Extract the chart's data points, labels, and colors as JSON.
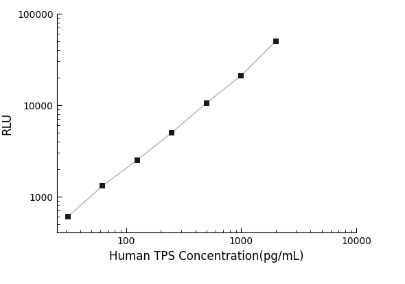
{
  "x_data": [
    31.25,
    62.5,
    125,
    250,
    500,
    1000,
    2000
  ],
  "y_data": [
    600,
    1300,
    2500,
    5000,
    10500,
    21000,
    50000
  ],
  "xlabel": "Human TPS Concentration(pg/mL)",
  "ylabel": "RLU",
  "xlim": [
    25,
    10000
  ],
  "ylim": [
    400,
    100000
  ],
  "line_color": "#b0b0b0",
  "marker_color": "#1a1a1a",
  "marker_size": 6,
  "background_color": "#ffffff",
  "xticks": [
    100,
    1000,
    10000
  ],
  "yticks": [
    1000,
    10000,
    100000
  ],
  "xlabel_fontsize": 12,
  "ylabel_fontsize": 12,
  "tick_fontsize": 10
}
